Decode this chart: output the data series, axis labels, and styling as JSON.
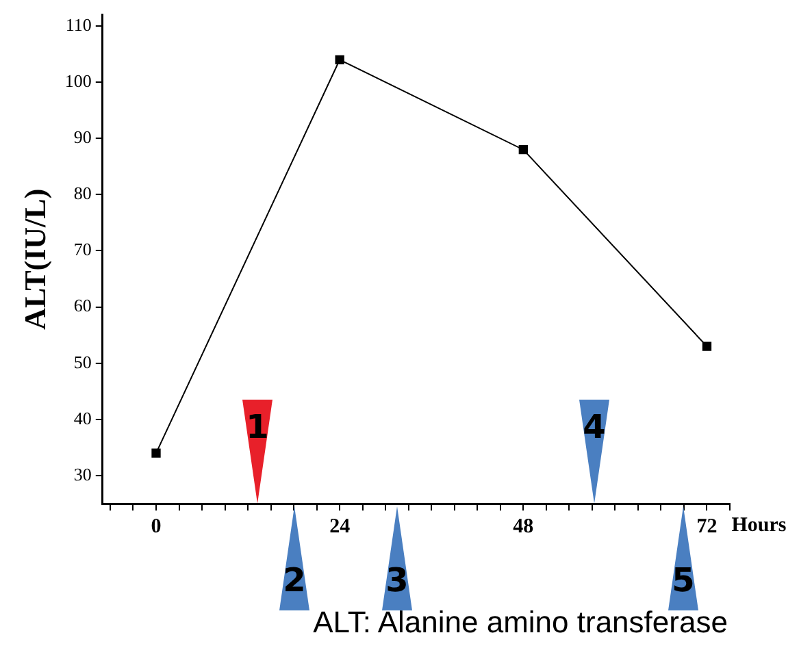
{
  "chart_data": {
    "type": "line",
    "ylabel": "ALT(IU/L)",
    "xlabel": "Hours",
    "x": [
      0,
      24,
      48,
      72
    ],
    "values": [
      34,
      104,
      88,
      53
    ],
    "color": "#000000",
    "marker": "square",
    "line_style": "solid",
    "grid": false,
    "legend": false,
    "xlim": [
      -7,
      75
    ],
    "xticks": [
      {
        "value": -6,
        "label": null
      },
      {
        "value": -3,
        "label": null
      },
      0,
      {
        "value": 3,
        "label": null
      },
      {
        "value": 6,
        "label": null
      },
      {
        "value": 9,
        "label": null
      },
      {
        "value": 12,
        "label": null
      },
      {
        "value": 15,
        "label": null
      },
      {
        "value": 18,
        "label": null
      },
      {
        "value": 21,
        "label": null
      },
      24,
      {
        "value": 27,
        "label": null
      },
      {
        "value": 30,
        "label": null
      },
      {
        "value": 33,
        "label": null
      },
      {
        "value": 36,
        "label": null
      },
      {
        "value": 39,
        "label": null
      },
      {
        "value": 42,
        "label": null
      },
      {
        "value": 45,
        "label": null
      },
      48,
      {
        "value": 51,
        "label": null
      },
      {
        "value": 54,
        "label": null
      },
      {
        "value": 57,
        "label": null
      },
      {
        "value": 60,
        "label": null
      },
      {
        "value": 63,
        "label": null
      },
      {
        "value": 66,
        "label": null
      },
      {
        "value": 69,
        "label": null
      },
      72,
      {
        "value": 75,
        "label": null
      }
    ],
    "ylim": [
      25,
      112
    ],
    "yticks": [
      30,
      40,
      50,
      60,
      70,
      80,
      90,
      100,
      110
    ],
    "annotations": [
      "1",
      "2",
      "3",
      "4",
      "5",
      "ALT: Alanine amino transferase"
    ]
  }
}
